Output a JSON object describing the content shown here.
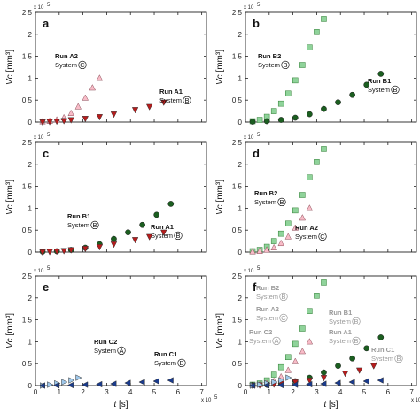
{
  "figure": {
    "y_axis_label": "Vc",
    "y_axis_unit": "[mm³]",
    "x_axis_label": "t",
    "x_axis_unit": "[s]",
    "multiplier": "x 10",
    "exponent": "5",
    "colors": {
      "A1": "#b71c1c",
      "A2": "#f8bcc8",
      "B1": "#1b5e20",
      "B2": "#8fd39a",
      "C1": "#1a3b8c",
      "C2": "#9ec7ea",
      "axis": "#222222",
      "annotation_muted": "#9a9a9a"
    }
  },
  "chart_data": [
    {
      "type": "scatter",
      "panel": "a",
      "xlim": [
        0,
        7.2
      ],
      "ylim": [
        0,
        2.5
      ],
      "xticks": [],
      "yticks": [
        0,
        0.5,
        1,
        1.5,
        2,
        2.5
      ],
      "xtick_labels": [],
      "ytick_labels": [
        "0",
        "0.5",
        "1",
        "1.5",
        "2",
        "2.5"
      ],
      "series": [
        {
          "name": "Run A2",
          "key": "A2",
          "marker": "triangle-up",
          "x": [
            0.3,
            0.6,
            0.9,
            1.2,
            1.5,
            1.8,
            2.1,
            2.4,
            2.7
          ],
          "y": [
            0.01,
            0.02,
            0.05,
            0.1,
            0.2,
            0.35,
            0.55,
            0.78,
            1.0
          ]
        },
        {
          "name": "Run A1",
          "key": "A1",
          "marker": "triangle-down",
          "x": [
            0.3,
            0.6,
            0.9,
            1.2,
            1.5,
            2.1,
            2.7,
            3.3,
            4.2,
            4.8,
            5.4
          ],
          "y": [
            0.0,
            0.01,
            0.02,
            0.03,
            0.05,
            0.08,
            0.12,
            0.18,
            0.28,
            0.35,
            0.45
          ]
        }
      ],
      "annotations": [
        {
          "run": "Run A2",
          "system": "System",
          "sys_letter": "C",
          "dx": 0,
          "dy": 0,
          "muted": false
        },
        {
          "run": "Run A1",
          "system": "System",
          "sys_letter": "B",
          "dx": 0,
          "dy": 0,
          "muted": false
        }
      ]
    },
    {
      "type": "scatter",
      "panel": "b",
      "xlim": [
        0,
        7.2
      ],
      "ylim": [
        0,
        2.5
      ],
      "xticks": [],
      "yticks": [
        0,
        0.5,
        1,
        1.5,
        2,
        2.5
      ],
      "xtick_labels": [],
      "ytick_labels": [
        "0",
        "0.5",
        "1",
        "1.5",
        "2",
        "2.5"
      ],
      "series": [
        {
          "name": "Run B2",
          "key": "B2",
          "marker": "square",
          "x": [
            0.3,
            0.6,
            0.9,
            1.2,
            1.5,
            1.8,
            2.1,
            2.4,
            2.7,
            3.0,
            3.3
          ],
          "y": [
            0.02,
            0.05,
            0.12,
            0.25,
            0.42,
            0.65,
            0.95,
            1.3,
            1.7,
            2.05,
            2.35
          ]
        },
        {
          "name": "Run B1",
          "key": "B1",
          "marker": "circle",
          "x": [
            0.3,
            0.9,
            1.5,
            2.1,
            2.7,
            3.3,
            3.9,
            4.5,
            5.1,
            5.7
          ],
          "y": [
            0.01,
            0.02,
            0.05,
            0.1,
            0.18,
            0.3,
            0.45,
            0.62,
            0.85,
            1.1
          ]
        }
      ],
      "annotations": [
        {
          "run": "Run B2",
          "system": "System",
          "sys_letter": "B",
          "dx": 0,
          "dy": 0,
          "muted": false
        },
        {
          "run": "Run B1",
          "system": "System",
          "sys_letter": "B",
          "dx": 0,
          "dy": 0,
          "muted": false
        }
      ]
    },
    {
      "type": "scatter",
      "panel": "c",
      "xlim": [
        0,
        7.2
      ],
      "ylim": [
        0,
        2.5
      ],
      "xticks": [],
      "yticks": [
        0,
        0.5,
        1,
        1.5,
        2,
        2.5
      ],
      "xtick_labels": [],
      "ytick_labels": [
        "0",
        "0.5",
        "1",
        "1.5",
        "2",
        "2.5"
      ],
      "series": [
        {
          "name": "Run B1",
          "key": "B1",
          "marker": "circle",
          "x": [
            0.3,
            0.9,
            1.5,
            2.1,
            2.7,
            3.3,
            3.9,
            4.5,
            5.1,
            5.7
          ],
          "y": [
            0.01,
            0.02,
            0.05,
            0.1,
            0.18,
            0.3,
            0.45,
            0.62,
            0.85,
            1.1
          ]
        },
        {
          "name": "Run A1",
          "key": "A1",
          "marker": "triangle-down",
          "x": [
            0.3,
            0.6,
            0.9,
            1.2,
            1.5,
            2.1,
            2.7,
            3.3,
            4.2,
            4.8,
            5.4
          ],
          "y": [
            0.0,
            0.01,
            0.02,
            0.03,
            0.05,
            0.08,
            0.12,
            0.18,
            0.28,
            0.35,
            0.45
          ]
        }
      ],
      "annotations": [
        {
          "run": "Run B1",
          "system": "System",
          "sys_letter": "B",
          "dx": 0,
          "dy": 0,
          "muted": false
        },
        {
          "run": "Run A1",
          "system": "System",
          "sys_letter": "B",
          "dx": 0,
          "dy": 0,
          "muted": false
        }
      ]
    },
    {
      "type": "scatter",
      "panel": "d",
      "xlim": [
        0,
        7.2
      ],
      "ylim": [
        0,
        2.5
      ],
      "xticks": [],
      "yticks": [
        0,
        0.5,
        1,
        1.5,
        2,
        2.5
      ],
      "xtick_labels": [],
      "ytick_labels": [
        "0",
        "0.5",
        "1",
        "1.5",
        "2",
        "2.5"
      ],
      "series": [
        {
          "name": "Run B2",
          "key": "B2",
          "marker": "square",
          "x": [
            0.3,
            0.6,
            0.9,
            1.2,
            1.5,
            1.8,
            2.1,
            2.4,
            2.7,
            3.0,
            3.3
          ],
          "y": [
            0.02,
            0.05,
            0.12,
            0.25,
            0.42,
            0.65,
            0.95,
            1.3,
            1.7,
            2.05,
            2.35
          ]
        },
        {
          "name": "Run A2",
          "key": "A2",
          "marker": "triangle-up",
          "x": [
            0.3,
            0.6,
            0.9,
            1.2,
            1.5,
            1.8,
            2.1,
            2.4,
            2.7
          ],
          "y": [
            0.01,
            0.02,
            0.05,
            0.1,
            0.2,
            0.35,
            0.55,
            0.78,
            1.0
          ]
        }
      ],
      "annotations": [
        {
          "run": "Run B2",
          "system": "System",
          "sys_letter": "B",
          "dx": 0,
          "dy": 0,
          "muted": false
        },
        {
          "run": "Run A2",
          "system": "System",
          "sys_letter": "C",
          "dx": 0,
          "dy": 0,
          "muted": false
        }
      ]
    },
    {
      "type": "scatter",
      "panel": "e",
      "xlim": [
        0,
        7.2
      ],
      "ylim": [
        0,
        2.5
      ],
      "xticks": [
        0,
        1,
        2,
        3,
        4,
        5,
        6,
        7
      ],
      "yticks": [
        0,
        0.5,
        1,
        1.5,
        2,
        2.5
      ],
      "xtick_labels": [
        "0",
        "1",
        "2",
        "3",
        "4",
        "5",
        "6",
        "7"
      ],
      "ytick_labels": [
        "0",
        "0.5",
        "1",
        "1.5",
        "2",
        "2.5"
      ],
      "series": [
        {
          "name": "Run C2",
          "key": "C2",
          "marker": "triangle-right",
          "x": [
            0.3,
            0.6,
            0.9,
            1.2,
            1.5,
            1.8
          ],
          "y": [
            0.0,
            0.02,
            0.05,
            0.08,
            0.12,
            0.18
          ]
        },
        {
          "name": "Run C1",
          "key": "C1",
          "marker": "triangle-left",
          "x": [
            0.3,
            0.9,
            1.5,
            2.1,
            2.7,
            3.3,
            3.9,
            4.5,
            5.1,
            5.7
          ],
          "y": [
            0.0,
            0.005,
            0.01,
            0.02,
            0.03,
            0.04,
            0.06,
            0.08,
            0.1,
            0.12
          ]
        }
      ],
      "annotations": [
        {
          "run": "Run C2",
          "system": "System",
          "sys_letter": "A",
          "dx": 0,
          "dy": 0,
          "muted": false
        },
        {
          "run": "Run C1",
          "system": "System",
          "sys_letter": "B",
          "dx": 0,
          "dy": 0,
          "muted": false
        }
      ]
    },
    {
      "type": "scatter",
      "panel": "f",
      "xlim": [
        0,
        7.2
      ],
      "ylim": [
        0,
        2.5
      ],
      "xticks": [
        0,
        1,
        2,
        3,
        4,
        5,
        6,
        7
      ],
      "yticks": [
        0,
        0.5,
        1,
        1.5,
        2,
        2.5
      ],
      "xtick_labels": [
        "0",
        "1",
        "2",
        "3",
        "4",
        "5",
        "6",
        "7"
      ],
      "ytick_labels": [
        "0",
        "0.5",
        "1",
        "1.5",
        "2",
        "2.5"
      ],
      "series": [
        {
          "name": "Run B2",
          "key": "B2",
          "marker": "square",
          "x": [
            0.3,
            0.6,
            0.9,
            1.2,
            1.5,
            1.8,
            2.1,
            2.4,
            2.7,
            3.0,
            3.3
          ],
          "y": [
            0.02,
            0.05,
            0.12,
            0.25,
            0.42,
            0.65,
            0.95,
            1.3,
            1.7,
            2.05,
            2.35
          ]
        },
        {
          "name": "Run A2",
          "key": "A2",
          "marker": "triangle-up",
          "x": [
            0.3,
            0.6,
            0.9,
            1.2,
            1.5,
            1.8,
            2.1,
            2.4,
            2.7
          ],
          "y": [
            0.01,
            0.02,
            0.05,
            0.1,
            0.2,
            0.35,
            0.55,
            0.78,
            1.0
          ]
        },
        {
          "name": "Run B1",
          "key": "B1",
          "marker": "circle",
          "x": [
            0.3,
            0.9,
            1.5,
            2.1,
            2.7,
            3.3,
            3.9,
            4.5,
            5.1,
            5.7
          ],
          "y": [
            0.01,
            0.02,
            0.05,
            0.1,
            0.18,
            0.3,
            0.45,
            0.62,
            0.85,
            1.1
          ]
        },
        {
          "name": "Run A1",
          "key": "A1",
          "marker": "triangle-down",
          "x": [
            0.3,
            0.6,
            0.9,
            1.2,
            1.5,
            2.1,
            2.7,
            3.3,
            4.2,
            4.8,
            5.4
          ],
          "y": [
            0.0,
            0.01,
            0.02,
            0.03,
            0.05,
            0.08,
            0.12,
            0.18,
            0.28,
            0.35,
            0.45
          ]
        },
        {
          "name": "Run C2",
          "key": "C2",
          "marker": "triangle-right",
          "x": [
            0.3,
            0.6,
            0.9,
            1.2,
            1.5,
            1.8
          ],
          "y": [
            0.0,
            0.02,
            0.05,
            0.08,
            0.12,
            0.18
          ]
        },
        {
          "name": "Run C1",
          "key": "C1",
          "marker": "triangle-left",
          "x": [
            0.3,
            0.9,
            1.5,
            2.1,
            2.7,
            3.3,
            3.9,
            4.5,
            5.1,
            5.7
          ],
          "y": [
            0.0,
            0.005,
            0.01,
            0.02,
            0.03,
            0.04,
            0.06,
            0.08,
            0.1,
            0.12
          ]
        }
      ],
      "annotations": [
        {
          "run": "Run B2",
          "system": "System",
          "sys_letter": "B",
          "dx": 0,
          "dy": 0,
          "muted": true
        },
        {
          "run": "Run A2",
          "system": "System",
          "sys_letter": "C",
          "dx": 0,
          "dy": 0,
          "muted": true
        },
        {
          "run": "Run B1",
          "system": "System",
          "sys_letter": "B",
          "dx": 0,
          "dy": 0,
          "muted": true
        },
        {
          "run": "Run C2",
          "system": "System",
          "sys_letter": "A",
          "dx": 0,
          "dy": 0,
          "muted": true
        },
        {
          "run": "Run A1",
          "system": "System",
          "sys_letter": "B",
          "dx": 0,
          "dy": 0,
          "muted": true
        },
        {
          "run": "Run C1",
          "system": "System",
          "sys_letter": "B",
          "dx": 0,
          "dy": 0,
          "muted": true
        }
      ]
    }
  ]
}
